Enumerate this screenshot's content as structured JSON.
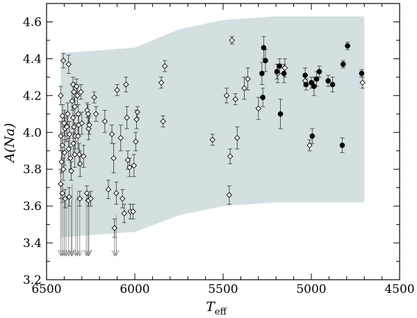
{
  "chart_data": {
    "type": "scatter",
    "title": "",
    "xlabel": "T",
    "xlabel_sub": "eff",
    "ylabel": "A(Na)",
    "xlim": [
      6500,
      4500
    ],
    "ylim": [
      3.2,
      4.7
    ],
    "x_ticks": [
      6500,
      6000,
      5500,
      5000,
      4500
    ],
    "y_ticks": [
      3.2,
      3.4,
      3.6,
      3.8,
      4.0,
      4.2,
      4.4,
      4.6
    ],
    "x_tick_labels": [
      "6500",
      "6000",
      "5500",
      "5000",
      "4500"
    ],
    "y_tick_labels": [
      "3.2",
      "3.4",
      "3.6",
      "3.8",
      "4.0",
      "4.2",
      "4.4",
      "4.6"
    ],
    "grid": false,
    "colors": {
      "band": "#d3dfe0",
      "marker": "#000000",
      "error_bar": "#444444",
      "limit_arrow": "#888888"
    },
    "band": {
      "upper": [
        [
          6420,
          4.43
        ],
        [
          6000,
          4.46
        ],
        [
          5750,
          4.56
        ],
        [
          5500,
          4.61
        ],
        [
          5200,
          4.63
        ],
        [
          4700,
          4.63
        ]
      ],
      "lower": [
        [
          6420,
          3.43
        ],
        [
          6000,
          3.46
        ],
        [
          5750,
          3.55
        ],
        [
          5500,
          3.6
        ],
        [
          5200,
          3.62
        ],
        [
          4700,
          3.62
        ]
      ]
    },
    "series": [
      {
        "marker": "open-diamond",
        "points": [
          [
            6405,
            4.39,
            0.04
          ],
          [
            6375,
            4.37,
            0.05
          ],
          [
            6420,
            4.2,
            0.05
          ],
          [
            6410,
            4.09,
            0.06
          ],
          [
            6400,
            4.05,
            0.07
          ],
          [
            6395,
            4.02,
            0.06
          ],
          [
            6420,
            3.98,
            0.08
          ],
          [
            6410,
            3.93,
            0.07
          ],
          [
            6398,
            3.89,
            0.07
          ],
          [
            6415,
            3.84,
            0.06
          ],
          [
            6405,
            3.8,
            0.06
          ],
          [
            6420,
            3.72,
            0.08
          ],
          [
            6410,
            3.67,
            0.05
          ],
          [
            6395,
            3.64,
            0.05
          ],
          [
            6380,
            4.1,
            0.06
          ],
          [
            6385,
            4.03,
            0.08
          ],
          [
            6370,
            3.99,
            0.07
          ],
          [
            6375,
            3.91,
            0.06
          ],
          [
            6365,
            3.86,
            0.06
          ],
          [
            6360,
            3.79,
            0.05
          ],
          [
            6372,
            3.65,
            0.05
          ],
          [
            6350,
            4.26,
            0.04
          ],
          [
            6345,
            4.22,
            0.05
          ],
          [
            6355,
            4.17,
            0.05
          ],
          [
            6340,
            4.14,
            0.05
          ],
          [
            6350,
            4.08,
            0.06
          ],
          [
            6345,
            4.03,
            0.06
          ],
          [
            6338,
            3.98,
            0.07
          ],
          [
            6348,
            3.94,
            0.06
          ],
          [
            6340,
            3.88,
            0.07
          ],
          [
            6330,
            4.25,
            0.04
          ],
          [
            6325,
            4.2,
            0.05
          ],
          [
            6320,
            4.1,
            0.05
          ],
          [
            6318,
            4.04,
            0.05
          ],
          [
            6322,
            3.98,
            0.07
          ],
          [
            6315,
            3.88,
            0.06
          ],
          [
            6310,
            3.83,
            0.07
          ],
          [
            6312,
            3.64,
            0.04
          ],
          [
            6305,
            4.22,
            0.04
          ],
          [
            6300,
            4.05,
            0.06
          ],
          [
            6290,
            3.87,
            0.06
          ],
          [
            6270,
            4.12,
            0.04
          ],
          [
            6265,
            4.1,
            0.05
          ],
          [
            6262,
            4.02,
            0.06
          ],
          [
            6258,
            4.04,
            0.05
          ],
          [
            6272,
            3.67,
            0.04
          ],
          [
            6262,
            3.63,
            0.03
          ],
          [
            6250,
            3.64,
            0.04
          ],
          [
            6230,
            4.19,
            0.03
          ],
          [
            6220,
            4.1,
            0.04
          ],
          [
            6170,
            4.06,
            0.06
          ],
          [
            6150,
            3.69,
            0.05
          ],
          [
            6130,
            3.99,
            0.05
          ],
          [
            6120,
            3.86,
            0.08
          ],
          [
            6115,
            3.48,
            0.05
          ],
          [
            6105,
            3.67,
            0.06
          ],
          [
            6100,
            4.23,
            0.03
          ],
          [
            6080,
            3.97,
            0.07
          ],
          [
            6070,
            3.64,
            0.05
          ],
          [
            6060,
            3.56,
            0.05
          ],
          [
            6050,
            4.26,
            0.04
          ],
          [
            6045,
            4.08,
            0.06
          ],
          [
            6040,
            3.85,
            0.05
          ],
          [
            6030,
            3.81,
            0.05
          ],
          [
            6025,
            3.57,
            0.04
          ],
          [
            6010,
            3.57,
            0.04
          ],
          [
            6005,
            3.82,
            0.06
          ],
          [
            5995,
            3.95,
            0.05
          ],
          [
            5990,
            4.07,
            0.05
          ],
          [
            5985,
            4.11,
            0.03
          ],
          [
            5850,
            4.27,
            0.03
          ],
          [
            5840,
            4.06,
            0.03
          ],
          [
            5830,
            4.36,
            0.03
          ],
          [
            5560,
            3.96,
            0.03
          ],
          [
            5480,
            4.2,
            0.04
          ],
          [
            5465,
            3.66,
            0.05
          ],
          [
            5460,
            3.87,
            0.04
          ],
          [
            5450,
            4.5,
            0.02
          ],
          [
            5430,
            4.18,
            0.03
          ],
          [
            5420,
            3.97,
            0.06
          ],
          [
            5380,
            4.24,
            0.06
          ],
          [
            5360,
            4.29,
            0.06
          ],
          [
            5300,
            4.13,
            0.06
          ],
          [
            5190,
            4.32,
            0.05
          ],
          [
            5150,
            4.35,
            0.05
          ],
          [
            5035,
            4.28,
            0.03
          ],
          [
            5010,
            3.93,
            0.03
          ],
          [
            4710,
            4.27,
            0.03
          ]
        ]
      },
      {
        "marker": "filled-circle",
        "points": [
          [
            5270,
            4.46,
            0.06
          ],
          [
            5280,
            4.32,
            0.06
          ],
          [
            5275,
            4.19,
            0.05
          ],
          [
            5260,
            4.39,
            0.06
          ],
          [
            5195,
            4.33,
            0.04
          ],
          [
            5180,
            4.36,
            0.04
          ],
          [
            5175,
            4.1,
            0.08
          ],
          [
            5155,
            4.32,
            0.05
          ],
          [
            5035,
            4.31,
            0.04
          ],
          [
            5030,
            4.26,
            0.03
          ],
          [
            5000,
            4.27,
            0.03
          ],
          [
            4995,
            3.98,
            0.04
          ],
          [
            4985,
            4.25,
            0.05
          ],
          [
            4970,
            4.29,
            0.04
          ],
          [
            4955,
            4.33,
            0.03
          ],
          [
            4905,
            4.28,
            0.03
          ],
          [
            4880,
            4.26,
            0.04
          ],
          [
            4820,
            4.37,
            0.02
          ],
          [
            4825,
            3.93,
            0.04
          ],
          [
            4795,
            4.47,
            0.02
          ],
          [
            4715,
            4.32,
            0.02
          ]
        ]
      },
      {
        "marker": "upper-limit-arrow",
        "points": [
          [
            6420,
            3.65
          ],
          [
            6410,
            3.68
          ],
          [
            6400,
            3.64
          ],
          [
            6390,
            3.62
          ],
          [
            6375,
            3.66
          ],
          [
            6360,
            3.63
          ],
          [
            6355,
            3.72
          ],
          [
            6335,
            3.64
          ],
          [
            6325,
            3.68
          ],
          [
            6312,
            3.66
          ],
          [
            6275,
            3.64
          ],
          [
            6265,
            3.66
          ],
          [
            6260,
            3.62
          ],
          [
            6115,
            3.5
          ],
          [
            6105,
            3.55
          ]
        ]
      }
    ]
  }
}
